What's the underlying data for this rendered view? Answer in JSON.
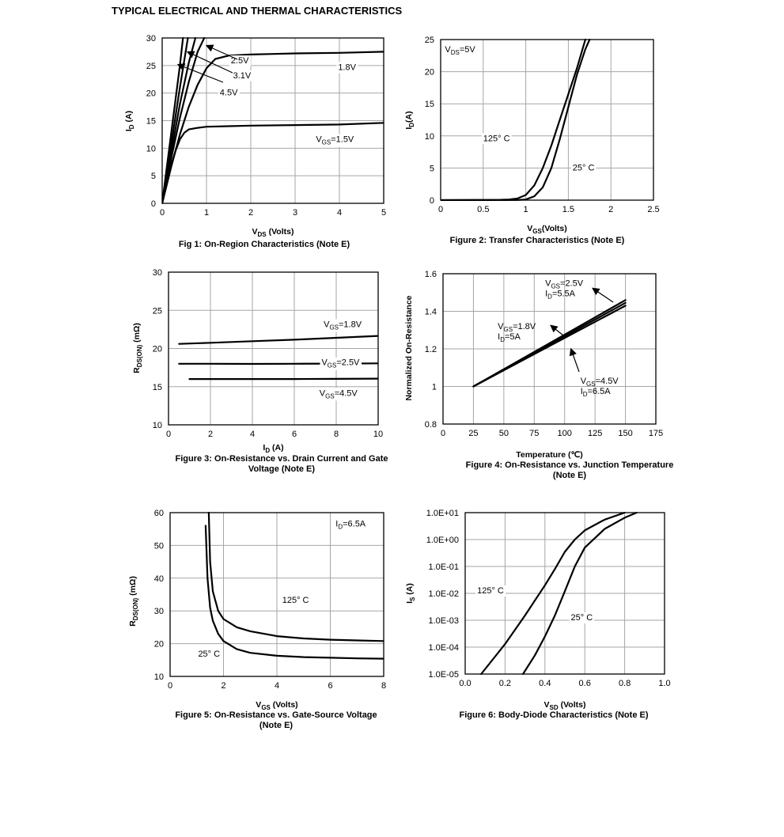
{
  "page": {
    "heading": "TYPICAL ELECTRICAL AND THERMAL CHARACTERISTICS"
  },
  "chart_data": [
    {
      "id": "fig1",
      "type": "line",
      "caption": "Fig 1: On-Region Characteristics (Note E)",
      "xlabel": {
        "main": "V",
        "sub": "DS",
        "tail": " (Volts)"
      },
      "ylabel": {
        "main": "I",
        "sub": "D",
        "tail": " (A)"
      },
      "xlim": [
        0,
        5
      ],
      "ylim": [
        0,
        30
      ],
      "xticks": [
        0,
        1,
        2,
        3,
        4,
        5
      ],
      "yticks": [
        0,
        5,
        10,
        15,
        20,
        25,
        30
      ],
      "grid": true,
      "series": [
        {
          "name": "VGS=1.5V",
          "x": [
            0,
            0.1,
            0.2,
            0.3,
            0.4,
            0.5,
            0.6,
            0.8,
            1.0,
            1.5,
            2.0,
            3.0,
            4.0,
            5.0
          ],
          "y": [
            0,
            3.5,
            6.8,
            9.5,
            11.6,
            12.8,
            13.4,
            13.7,
            13.9,
            14.0,
            14.1,
            14.2,
            14.3,
            14.6
          ]
        },
        {
          "name": "1.8V",
          "x": [
            0,
            0.2,
            0.4,
            0.6,
            0.8,
            1.0,
            1.2,
            1.5,
            2.0,
            2.5,
            3.0,
            4.0,
            5.0
          ],
          "y": [
            0,
            6.5,
            12.5,
            17.5,
            21.5,
            24.5,
            26.2,
            26.8,
            27.0,
            27.1,
            27.2,
            27.3,
            27.5
          ]
        },
        {
          "name": "2.5V",
          "x": [
            0,
            0.2,
            0.4,
            0.6,
            0.8,
            0.95
          ],
          "y": [
            0,
            8.0,
            15.5,
            22.0,
            27.5,
            30.0
          ]
        },
        {
          "name": "3.1V",
          "x": [
            0,
            0.2,
            0.4,
            0.6,
            0.75
          ],
          "y": [
            0,
            9.0,
            18.0,
            25.5,
            30.0
          ]
        },
        {
          "name": "4.5V",
          "x": [
            0,
            0.2,
            0.4,
            0.58
          ],
          "y": [
            0,
            10.5,
            21.0,
            30.0
          ]
        },
        {
          "name": "",
          "x": [
            0,
            0.2,
            0.4,
            0.47
          ],
          "y": [
            0,
            12.5,
            25.0,
            30.0
          ]
        }
      ],
      "annotations": [
        {
          "text": "2.5V",
          "x": 1.55,
          "y": 25.4
        },
        {
          "text": "3.1V",
          "x": 1.6,
          "y": 22.7
        },
        {
          "text": "4.5V",
          "x": 1.3,
          "y": 19.6
        },
        {
          "text": "1.8V",
          "x": 3.97,
          "y": 24.2
        },
        {
          "text": "V",
          "sub": "GS",
          "tail": "=1.5V",
          "x": 3.47,
          "y": 11.1
        }
      ]
    },
    {
      "id": "fig2",
      "type": "line",
      "caption": "Figure 2: Transfer Characteristics (Note E)",
      "xlabel": {
        "main": "V",
        "sub": "GS",
        "tail": "(Volts)"
      },
      "ylabel": {
        "main": "I",
        "sub": "D",
        "tail": "(A)"
      },
      "xlim": [
        0,
        2.5
      ],
      "ylim": [
        0,
        25
      ],
      "xticks": [
        "0",
        "0.5",
        "1",
        "1.5",
        "2",
        "2.5"
      ],
      "yticks": [
        0,
        5,
        10,
        15,
        20,
        25
      ],
      "grid": true,
      "series": [
        {
          "name": "125° C",
          "x": [
            0,
            0.7,
            0.8,
            0.9,
            1.0,
            1.1,
            1.2,
            1.3,
            1.4,
            1.5,
            1.6,
            1.7
          ],
          "y": [
            0,
            0.05,
            0.1,
            0.25,
            0.8,
            2.3,
            5.0,
            8.5,
            12.5,
            16.5,
            20.5,
            25.0
          ]
        },
        {
          "name": "25° C",
          "x": [
            0,
            0.9,
            1.0,
            1.1,
            1.2,
            1.3,
            1.4,
            1.5,
            1.6,
            1.7,
            1.75
          ],
          "y": [
            0,
            0.02,
            0.1,
            0.6,
            2.0,
            5.0,
            9.5,
            14.5,
            19.5,
            23.5,
            25.0
          ]
        }
      ],
      "annotations": [
        {
          "text": "V",
          "sub": "DS",
          "tail": "=5V",
          "x": 0.05,
          "y": 23.0
        },
        {
          "text": "125° C",
          "x": 0.5,
          "y": 9.2
        },
        {
          "text": "25° C",
          "x": 1.55,
          "y": 4.6
        }
      ]
    },
    {
      "id": "fig3",
      "type": "line",
      "caption": [
        "Figure 3: On-Resistance vs. Drain Current and Gate",
        "Voltage (Note E)"
      ],
      "xlabel": {
        "main": "I",
        "sub": "D",
        "tail": " (A)"
      },
      "ylabel": {
        "main": "R",
        "sub": "DS(ON)",
        "tail": " (mΩ)"
      },
      "xlim": [
        0,
        10
      ],
      "ylim": [
        10,
        30
      ],
      "xticks": [
        0,
        2,
        4,
        6,
        8,
        10
      ],
      "yticks": [
        10,
        15,
        20,
        25,
        30
      ],
      "grid": true,
      "series": [
        {
          "name": "VGS=1.8V",
          "x": [
            0.5,
            2,
            4,
            6,
            8,
            10
          ],
          "y": [
            20.6,
            20.75,
            20.95,
            21.15,
            21.4,
            21.65
          ]
        },
        {
          "name": "VGS=2.5V",
          "x": [
            0.5,
            2,
            4,
            6,
            8,
            10
          ],
          "y": [
            18.0,
            18.0,
            17.98,
            18.0,
            18.02,
            18.05
          ]
        },
        {
          "name": "VGS=4.5V",
          "x": [
            1,
            2,
            4,
            6,
            8,
            10
          ],
          "y": [
            16.0,
            16.0,
            16.0,
            16.0,
            16.02,
            16.05
          ]
        }
      ],
      "annotations": [
        {
          "text": "V",
          "sub": "GS",
          "tail": "=1.8V",
          "x": 7.4,
          "y": 22.8
        },
        {
          "text": "V",
          "sub": "GS",
          "tail": "=2.5V",
          "x": 7.3,
          "y": 17.8
        },
        {
          "text": "V",
          "sub": "GS",
          "tail": "=4.5V",
          "x": 7.2,
          "y": 13.8
        }
      ]
    },
    {
      "id": "fig4",
      "type": "line",
      "caption": [
        "Figure 4: On-Resistance vs. Junction Temperature",
        "(Note E)"
      ],
      "xlabel": {
        "main": "Temperature (℃)",
        "sub": "",
        "tail": ""
      },
      "ylabel": {
        "main": "Normalized On-Resistance",
        "sub": "",
        "tail": ""
      },
      "xlim": [
        0,
        175
      ],
      "ylim": [
        0.8,
        1.6
      ],
      "xticks": [
        0,
        25,
        50,
        75,
        100,
        125,
        150,
        175
      ],
      "yticks": [
        "0.8",
        "1",
        "1.2",
        "1.4",
        "1.6"
      ],
      "grid": true,
      "series": [
        {
          "name": "VGS=2.5V ID=5.5A",
          "x": [
            25,
            150
          ],
          "y": [
            1.0,
            1.46
          ]
        },
        {
          "name": "VGS=1.8V ID=5A",
          "x": [
            25,
            150
          ],
          "y": [
            1.0,
            1.445
          ]
        },
        {
          "name": "VGS=4.5V ID=6.5A",
          "x": [
            25,
            150
          ],
          "y": [
            1.0,
            1.43
          ]
        }
      ],
      "annotations": [
        {
          "lines": [
            {
              "text": "V",
              "sub": "GS",
              "tail": "=2.5V"
            },
            {
              "text": "I",
              "sub": "D",
              "tail": "=5.5A"
            }
          ],
          "x": 84,
          "y": 1.535
        },
        {
          "lines": [
            {
              "text": "V",
              "sub": "GS",
              "tail": "=1.8V"
            },
            {
              "text": "I",
              "sub": "D",
              "tail": "=5A"
            }
          ],
          "x": 45,
          "y": 1.305
        },
        {
          "lines": [
            {
              "text": "V",
              "sub": "GS",
              "tail": "=4.5V"
            },
            {
              "text": "I",
              "sub": "D",
              "tail": "=6.5A"
            }
          ],
          "x": 113,
          "y": 1.015
        }
      ]
    },
    {
      "id": "fig5",
      "type": "line",
      "caption": [
        "Figure 5: On-Resistance vs. Gate-Source Voltage",
        "(Note E)"
      ],
      "xlabel": {
        "main": "V",
        "sub": "GS",
        "tail": " (Volts)"
      },
      "ylabel": {
        "main": "R",
        "sub": "DS(ON)",
        "tail": " (mΩ)"
      },
      "xlim": [
        0,
        8
      ],
      "ylim": [
        10,
        60
      ],
      "xticks": [
        0,
        2,
        4,
        6,
        8
      ],
      "yticks": [
        10,
        20,
        30,
        40,
        50,
        60
      ],
      "grid": true,
      "series": [
        {
          "name": "125° C",
          "x": [
            1.45,
            1.5,
            1.6,
            1.8,
            2.0,
            2.5,
            3.0,
            4.0,
            5.0,
            6.0,
            7.0,
            8.0
          ],
          "y": [
            60,
            45,
            36,
            30,
            27.5,
            25.0,
            23.8,
            22.3,
            21.6,
            21.2,
            21.0,
            20.8
          ]
        },
        {
          "name": "25° C",
          "x": [
            1.33,
            1.4,
            1.5,
            1.6,
            1.8,
            2.0,
            2.5,
            3.0,
            4.0,
            5.0,
            6.0,
            7.0,
            8.0
          ],
          "y": [
            56,
            40,
            31,
            27,
            23,
            20.8,
            18.3,
            17.2,
            16.3,
            15.9,
            15.7,
            15.5,
            15.4
          ]
        }
      ],
      "annotations": [
        {
          "text": "I",
          "sub": "D",
          "tail": "=6.5A",
          "x": 6.2,
          "y": 55.8
        },
        {
          "text": "125° C",
          "x": 4.2,
          "y": 32.5
        },
        {
          "text": "25° C",
          "x": 1.05,
          "y": 16.0
        }
      ]
    },
    {
      "id": "fig6",
      "type": "line",
      "caption": "Figure 6: Body-Diode Characteristics (Note E)",
      "xlabel": {
        "main": "V",
        "sub": "SD",
        "tail": " (Volts)"
      },
      "ylabel": {
        "main": "I",
        "sub": "S",
        "tail": " (A)"
      },
      "xlim": [
        0,
        1.0
      ],
      "ylim_log10": [
        -5,
        1
      ],
      "scale": "log",
      "xticks": [
        "0.0",
        "0.2",
        "0.4",
        "0.6",
        "0.8",
        "1.0"
      ],
      "yticks": [
        "1.0E-05",
        "1.0E-04",
        "1.0E-03",
        "1.0E-02",
        "1.0E-01",
        "1.0E+00",
        "1.0E+01"
      ],
      "grid": true,
      "series": [
        {
          "name": "125° C",
          "x": [
            0.08,
            0.2,
            0.3,
            0.4,
            0.45,
            0.5,
            0.55,
            0.6,
            0.7,
            0.8
          ],
          "y": [
            1e-05,
            0.00013,
            0.0015,
            0.02,
            0.08,
            0.35,
            1.0,
            2.2,
            5.5,
            10
          ]
        },
        {
          "name": "25° C",
          "x": [
            0.29,
            0.35,
            0.4,
            0.45,
            0.5,
            0.55,
            0.6,
            0.7,
            0.8,
            0.86
          ],
          "y": [
            1e-05,
            5e-05,
            0.00025,
            0.0015,
            0.012,
            0.1,
            0.5,
            2.5,
            6.5,
            10
          ]
        }
      ],
      "annotations": [
        {
          "text": "125° C",
          "x": 0.06,
          "y": 0.01
        },
        {
          "text": "25° C",
          "x": 0.53,
          "y": 0.001
        }
      ]
    }
  ]
}
